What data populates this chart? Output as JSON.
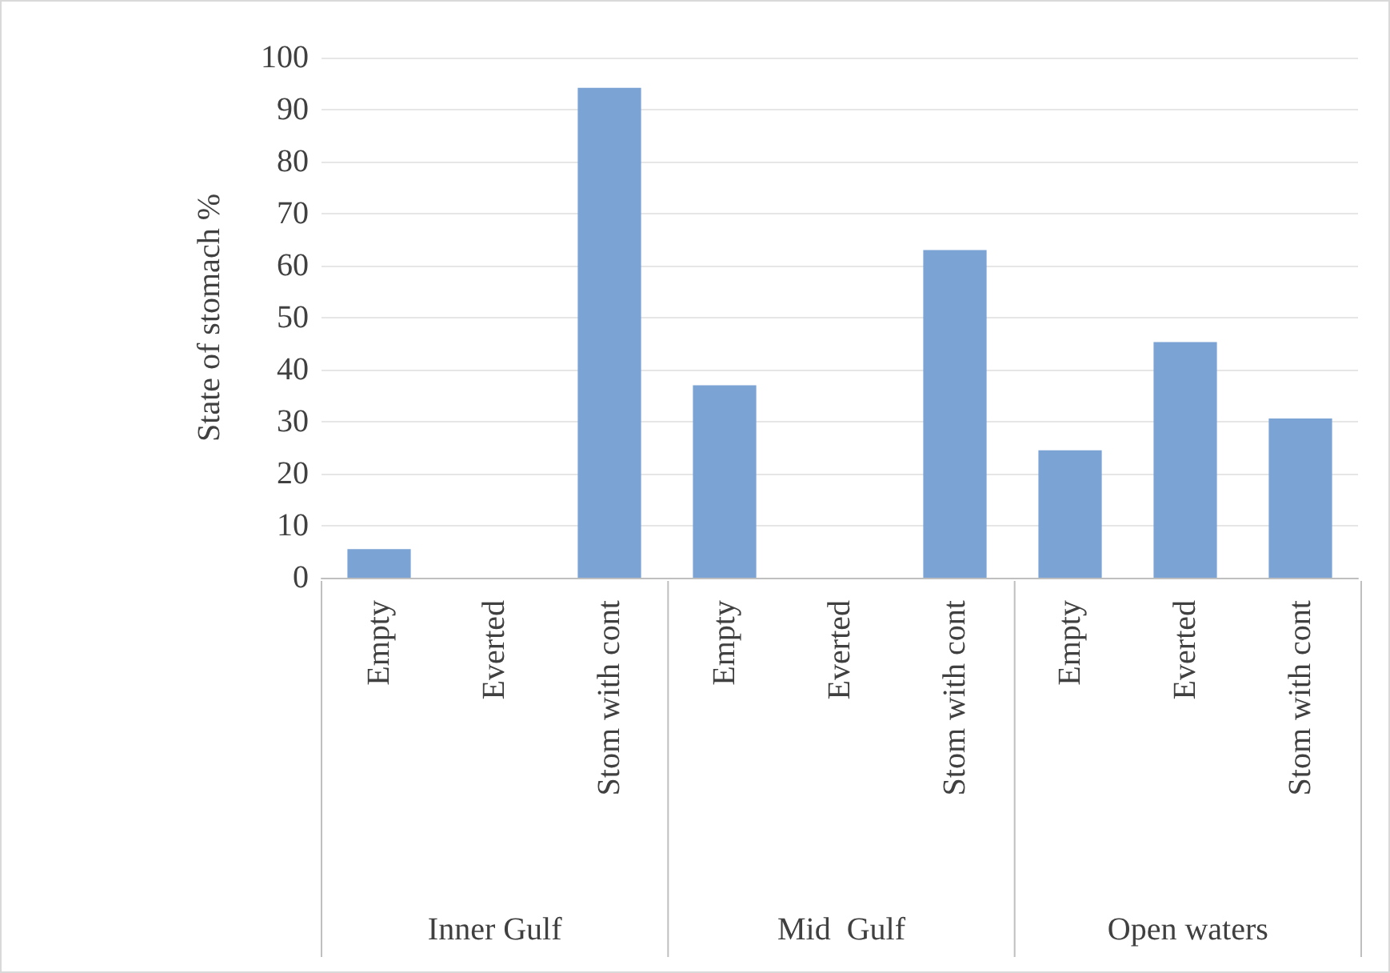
{
  "chart_data": {
    "type": "bar",
    "ylabel": "State of stomach %",
    "categories": [
      "Empty",
      "Everted",
      "Stom with cont",
      "Empty",
      "Everted",
      "Stom with cont",
      "Empty",
      "Everted",
      "Stom with cont"
    ],
    "values": [
      5.5,
      0,
      94.2,
      37,
      0,
      63,
      24.5,
      45.3,
      30.6
    ],
    "color": "#7ba3d3",
    "annotations": [
      "Inner Gulf",
      "Mid  Gulf",
      "Open waters"
    ],
    "ylim": [
      0,
      100
    ],
    "yticks": [
      0,
      10,
      20,
      30,
      40,
      50,
      60,
      70,
      80,
      90,
      100
    ],
    "grid": true
  }
}
